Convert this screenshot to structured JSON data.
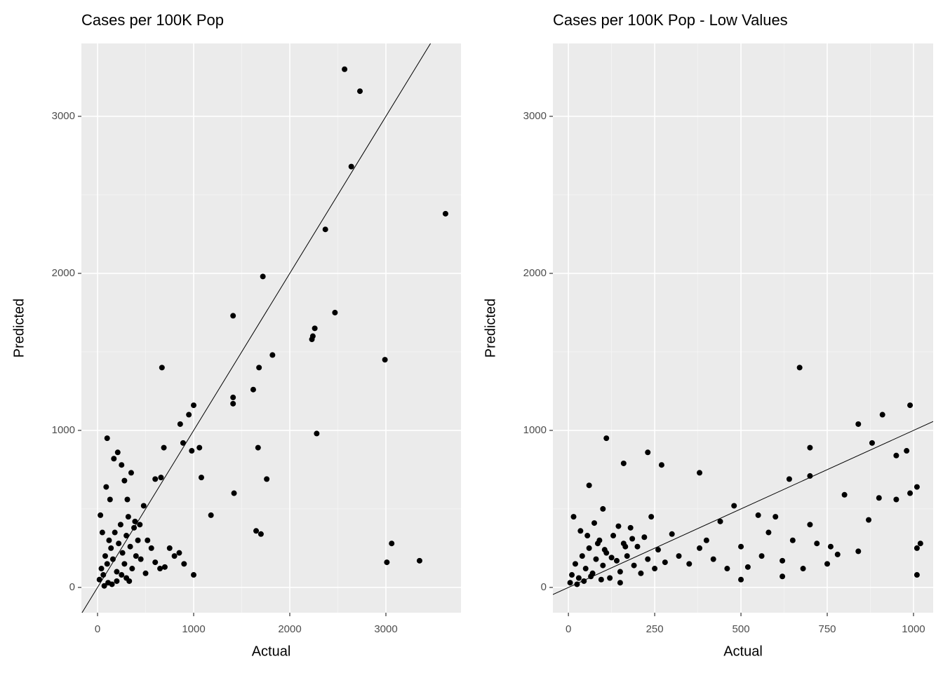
{
  "chart_data": [
    {
      "type": "scatter",
      "title": "Cases per 100K Pop",
      "x_label": "Actual",
      "y_label": "Predicted",
      "color": "#000000",
      "grid": true,
      "abline": {
        "intercept": 0,
        "slope": 1
      },
      "xlim": [
        -168,
        3781
      ],
      "ylim": [
        -161,
        3464
      ],
      "xticks": [
        0,
        1000,
        2000,
        3000
      ],
      "yticks": [
        0,
        1000,
        2000,
        3000
      ],
      "x": [
        2570,
        2730,
        2640,
        3620,
        2370,
        1720,
        2470,
        1410,
        2260,
        2240,
        2230,
        2990,
        1820,
        1680,
        670,
        1620,
        1410,
        1410,
        1000,
        950,
        860,
        1670,
        2280,
        100,
        980,
        1060,
        690,
        1080,
        1760,
        1420,
        3060,
        3010,
        3350,
        1650,
        1700,
        1000,
        1180,
        890,
        660,
        600,
        20,
        40,
        60,
        80,
        100,
        120,
        140,
        160,
        180,
        200,
        220,
        240,
        260,
        280,
        300,
        320,
        340,
        360,
        380,
        400,
        420,
        450,
        480,
        500,
        30,
        50,
        90,
        130,
        170,
        210,
        250,
        280,
        310,
        350,
        390,
        440,
        520,
        560,
        600,
        650,
        700,
        750,
        800,
        850,
        900,
        110,
        200,
        300,
        150,
        70,
        250,
        330
      ],
      "y": [
        3300,
        3160,
        2680,
        2380,
        2280,
        1980,
        1750,
        1730,
        1650,
        1600,
        1580,
        1450,
        1480,
        1400,
        1400,
        1260,
        1210,
        1170,
        1160,
        1100,
        1040,
        890,
        980,
        950,
        870,
        890,
        890,
        700,
        690,
        600,
        280,
        160,
        170,
        360,
        340,
        80,
        460,
        920,
        700,
        690,
        50,
        120,
        80,
        200,
        150,
        300,
        250,
        180,
        350,
        100,
        280,
        400,
        220,
        150,
        330,
        450,
        260,
        120,
        380,
        200,
        300,
        180,
        520,
        90,
        460,
        350,
        640,
        560,
        820,
        860,
        780,
        680,
        560,
        730,
        420,
        400,
        300,
        250,
        160,
        120,
        130,
        250,
        200,
        220,
        150,
        30,
        40,
        60,
        20,
        10,
        80,
        40
      ]
    },
    {
      "type": "scatter",
      "title": "Cases per 100K Pop - Low Values",
      "x_label": "Actual",
      "y_label": "Predicted",
      "color": "#000000",
      "grid": true,
      "abline": {
        "intercept": 0,
        "slope": 1
      },
      "xlim": [
        -45,
        1057
      ],
      "ylim": [
        -161,
        3464
      ],
      "xticks": [
        0,
        250,
        500,
        750,
        1000
      ],
      "yticks": [
        0,
        1000,
        2000,
        3000
      ],
      "x": [
        670,
        990,
        910,
        840,
        880,
        700,
        110,
        230,
        980,
        950,
        640,
        700,
        1010,
        990,
        800,
        950,
        900,
        870,
        1010,
        1020,
        1010,
        840,
        760,
        780,
        700,
        480,
        380,
        160,
        270,
        60,
        100,
        600,
        550,
        620,
        500,
        5,
        10,
        20,
        30,
        40,
        50,
        60,
        70,
        80,
        90,
        100,
        110,
        120,
        130,
        140,
        150,
        160,
        170,
        180,
        190,
        200,
        210,
        220,
        230,
        240,
        250,
        260,
        280,
        300,
        320,
        350,
        380,
        400,
        420,
        440,
        460,
        15,
        35,
        55,
        75,
        85,
        105,
        125,
        145,
        165,
        185,
        25,
        45,
        65,
        95,
        150,
        500,
        520,
        560,
        580,
        620,
        650,
        680,
        720,
        750
      ],
      "y": [
        1400,
        1160,
        1100,
        1040,
        920,
        890,
        950,
        860,
        870,
        840,
        690,
        710,
        640,
        600,
        590,
        560,
        570,
        430,
        250,
        280,
        80,
        230,
        260,
        210,
        400,
        520,
        730,
        790,
        780,
        650,
        500,
        450,
        460,
        70,
        50,
        30,
        80,
        150,
        60,
        200,
        120,
        250,
        90,
        180,
        300,
        140,
        220,
        60,
        330,
        170,
        100,
        280,
        200,
        380,
        140,
        260,
        90,
        320,
        180,
        450,
        120,
        240,
        160,
        340,
        200,
        150,
        250,
        300,
        180,
        420,
        120,
        450,
        360,
        330,
        410,
        280,
        240,
        190,
        390,
        260,
        310,
        20,
        40,
        70,
        50,
        30,
        260,
        130,
        200,
        350,
        170,
        300,
        120,
        280,
        150
      ]
    }
  ]
}
